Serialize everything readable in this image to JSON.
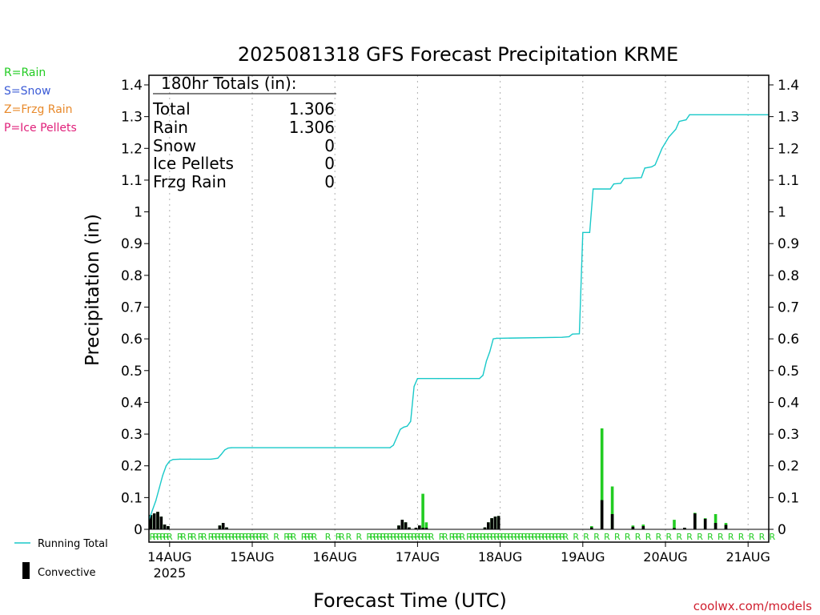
{
  "chart_data": {
    "type": "bar+line",
    "title": "2025081318 GFS Forecast Precipitation KRME",
    "xlabel": "Forecast Time (UTC)",
    "ylabel": "Precipitation (in)",
    "ylim": [
      0,
      1.4
    ],
    "y_ticks": [
      "0",
      "0.1",
      "0.2",
      "0.3",
      "0.4",
      "0.5",
      "0.6",
      "0.7",
      "0.8",
      "0.9",
      "1",
      "1.1",
      "1.2",
      "1.3",
      "1.4"
    ],
    "x_range_hours": [
      0,
      180
    ],
    "x_ticks": [
      {
        "label": "14AUG",
        "sub": "2025",
        "hour": 6
      },
      {
        "label": "15AUG",
        "hour": 30
      },
      {
        "label": "16AUG",
        "hour": 54
      },
      {
        "label": "17AUG",
        "hour": 78
      },
      {
        "label": "18AUG",
        "hour": 102
      },
      {
        "label": "19AUG",
        "hour": 126
      },
      {
        "label": "20AUG",
        "hour": 150
      },
      {
        "label": "21AUG",
        "hour": 174
      }
    ],
    "grid": "vertical dotted at each day",
    "legend": {
      "types": [
        {
          "text": "R=Rain",
          "color": "#22cc22"
        },
        {
          "text": "S=Snow",
          "color": "#3b5bd6"
        },
        {
          "text": "Z=Frzg Rain",
          "color": "#e8892a"
        },
        {
          "text": "P=Ice Pellets",
          "color": "#e0207a"
        }
      ],
      "running_total": "Running Total",
      "convective": "Convective"
    },
    "totals": {
      "heading": "180hr Totals (in):",
      "rows": [
        {
          "label": "Total",
          "value": "1.306"
        },
        {
          "label": "Rain",
          "value": "1.306"
        },
        {
          "label": "Snow",
          "value": "0"
        },
        {
          "label": "Ice Pellets",
          "value": "0"
        },
        {
          "label": "Frzg Rain",
          "value": "0"
        }
      ]
    },
    "series": [
      {
        "name": "Running Total",
        "color": "#19c9c9",
        "points": [
          [
            0,
            0.03
          ],
          [
            1,
            0.06
          ],
          [
            2,
            0.09
          ],
          [
            3,
            0.13
          ],
          [
            4,
            0.17
          ],
          [
            5,
            0.2
          ],
          [
            6,
            0.215
          ],
          [
            7,
            0.22
          ],
          [
            9,
            0.221
          ],
          [
            12,
            0.221
          ],
          [
            18,
            0.221
          ],
          [
            20,
            0.224
          ],
          [
            21,
            0.236
          ],
          [
            22,
            0.25
          ],
          [
            23,
            0.256
          ],
          [
            24,
            0.257
          ],
          [
            30,
            0.257
          ],
          [
            54,
            0.257
          ],
          [
            70,
            0.257
          ],
          [
            71,
            0.265
          ],
          [
            72,
            0.29
          ],
          [
            73,
            0.315
          ],
          [
            74,
            0.322
          ],
          [
            75,
            0.325
          ],
          [
            76,
            0.34
          ],
          [
            77,
            0.45
          ],
          [
            78,
            0.475
          ],
          [
            84,
            0.475
          ],
          [
            96,
            0.475
          ],
          [
            97,
            0.485
          ],
          [
            98,
            0.53
          ],
          [
            99,
            0.56
          ],
          [
            100,
            0.6
          ],
          [
            101,
            0.602
          ],
          [
            102,
            0.602
          ],
          [
            120,
            0.605
          ],
          [
            122,
            0.607
          ],
          [
            123,
            0.615
          ],
          [
            125,
            0.616
          ],
          [
            126,
            0.935
          ],
          [
            128,
            0.935
          ],
          [
            129,
            1.072
          ],
          [
            134,
            1.072
          ],
          [
            135,
            1.088
          ],
          [
            137,
            1.09
          ],
          [
            138,
            1.105
          ],
          [
            143,
            1.108
          ],
          [
            144,
            1.138
          ],
          [
            146,
            1.142
          ],
          [
            147,
            1.148
          ],
          [
            149,
            1.2
          ],
          [
            151,
            1.236
          ],
          [
            153,
            1.26
          ],
          [
            154,
            1.285
          ],
          [
            156,
            1.29
          ],
          [
            157,
            1.306
          ],
          [
            180,
            1.306
          ]
        ]
      }
    ],
    "precip_bars": {
      "color": "#22cc22",
      "convective_color": "#000000",
      "items": [
        {
          "hour": 0,
          "total": 0.045,
          "convective": 0.045
        },
        {
          "hour": 1,
          "total": 0.05,
          "convective": 0.05
        },
        {
          "hour": 2,
          "total": 0.055,
          "convective": 0.055
        },
        {
          "hour": 3,
          "total": 0.04,
          "convective": 0.04
        },
        {
          "hour": 4,
          "total": 0.015,
          "convective": 0.015
        },
        {
          "hour": 5,
          "total": 0.01,
          "convective": 0.01
        },
        {
          "hour": 20,
          "total": 0.012,
          "convective": 0.012
        },
        {
          "hour": 21,
          "total": 0.02,
          "convective": 0.02
        },
        {
          "hour": 22,
          "total": 0.006,
          "convective": 0.006
        },
        {
          "hour": 72,
          "total": 0.012,
          "convective": 0.012
        },
        {
          "hour": 73,
          "total": 0.03,
          "convective": 0.03
        },
        {
          "hour": 74,
          "total": 0.022,
          "convective": 0.022
        },
        {
          "hour": 75,
          "total": 0.006,
          "convective": 0.006
        },
        {
          "hour": 77,
          "total": 0.005,
          "convective": 0.005
        },
        {
          "hour": 78,
          "total": 0.012,
          "convective": 0.012
        },
        {
          "hour": 79,
          "total": 0.112,
          "convective": 0.005
        },
        {
          "hour": 80,
          "total": 0.022,
          "convective": 0.005
        },
        {
          "hour": 97,
          "total": 0.006,
          "convective": 0.006
        },
        {
          "hour": 98,
          "total": 0.022,
          "convective": 0.022
        },
        {
          "hour": 99,
          "total": 0.035,
          "convective": 0.035
        },
        {
          "hour": 100,
          "total": 0.04,
          "convective": 0.04
        },
        {
          "hour": 101,
          "total": 0.042,
          "convective": 0.042
        },
        {
          "hour": 128,
          "total": 0.01,
          "convective": 0.006
        },
        {
          "hour": 131,
          "total": 0.318,
          "convective": 0.092
        },
        {
          "hour": 134,
          "total": 0.135,
          "convective": 0.048
        },
        {
          "hour": 140,
          "total": 0.012,
          "convective": 0.008
        },
        {
          "hour": 143,
          "total": 0.015,
          "convective": 0.01
        },
        {
          "hour": 152,
          "total": 0.03,
          "convective": 0.004
        },
        {
          "hour": 155,
          "total": 0.005,
          "convective": 0.005
        },
        {
          "hour": 158,
          "total": 0.052,
          "convective": 0.05
        },
        {
          "hour": 161,
          "total": 0.035,
          "convective": 0.033
        },
        {
          "hour": 164,
          "total": 0.048,
          "convective": 0.02
        },
        {
          "hour": 167,
          "total": 0.02,
          "convective": 0.014
        }
      ]
    },
    "type_markers": {
      "symbol": "R",
      "color": "#22cc22",
      "hours": [
        0,
        1,
        2,
        3,
        4,
        5,
        8,
        9,
        11,
        12,
        14,
        15,
        17,
        18,
        19,
        20,
        21,
        22,
        23,
        24,
        25,
        26,
        27,
        28,
        29,
        30,
        31,
        32,
        33,
        36,
        39,
        40,
        41,
        44,
        45,
        46,
        47,
        51,
        54,
        55,
        57,
        60,
        63,
        64,
        65,
        66,
        67,
        68,
        69,
        70,
        71,
        72,
        73,
        74,
        75,
        76,
        77,
        78,
        79,
        80,
        81,
        84,
        85,
        87,
        88,
        89,
        90,
        92,
        93,
        94,
        95,
        96,
        97,
        98,
        99,
        100,
        101,
        102,
        103,
        104,
        105,
        106,
        107,
        108,
        109,
        110,
        111,
        112,
        113,
        114,
        115,
        116,
        117,
        118,
        119,
        120,
        123,
        126,
        129,
        132,
        135,
        138,
        141,
        144,
        147,
        150,
        153,
        156,
        159,
        162,
        165,
        168,
        171,
        174,
        177,
        180
      ]
    }
  },
  "footer": {
    "credit": "coolwx.com/models"
  }
}
